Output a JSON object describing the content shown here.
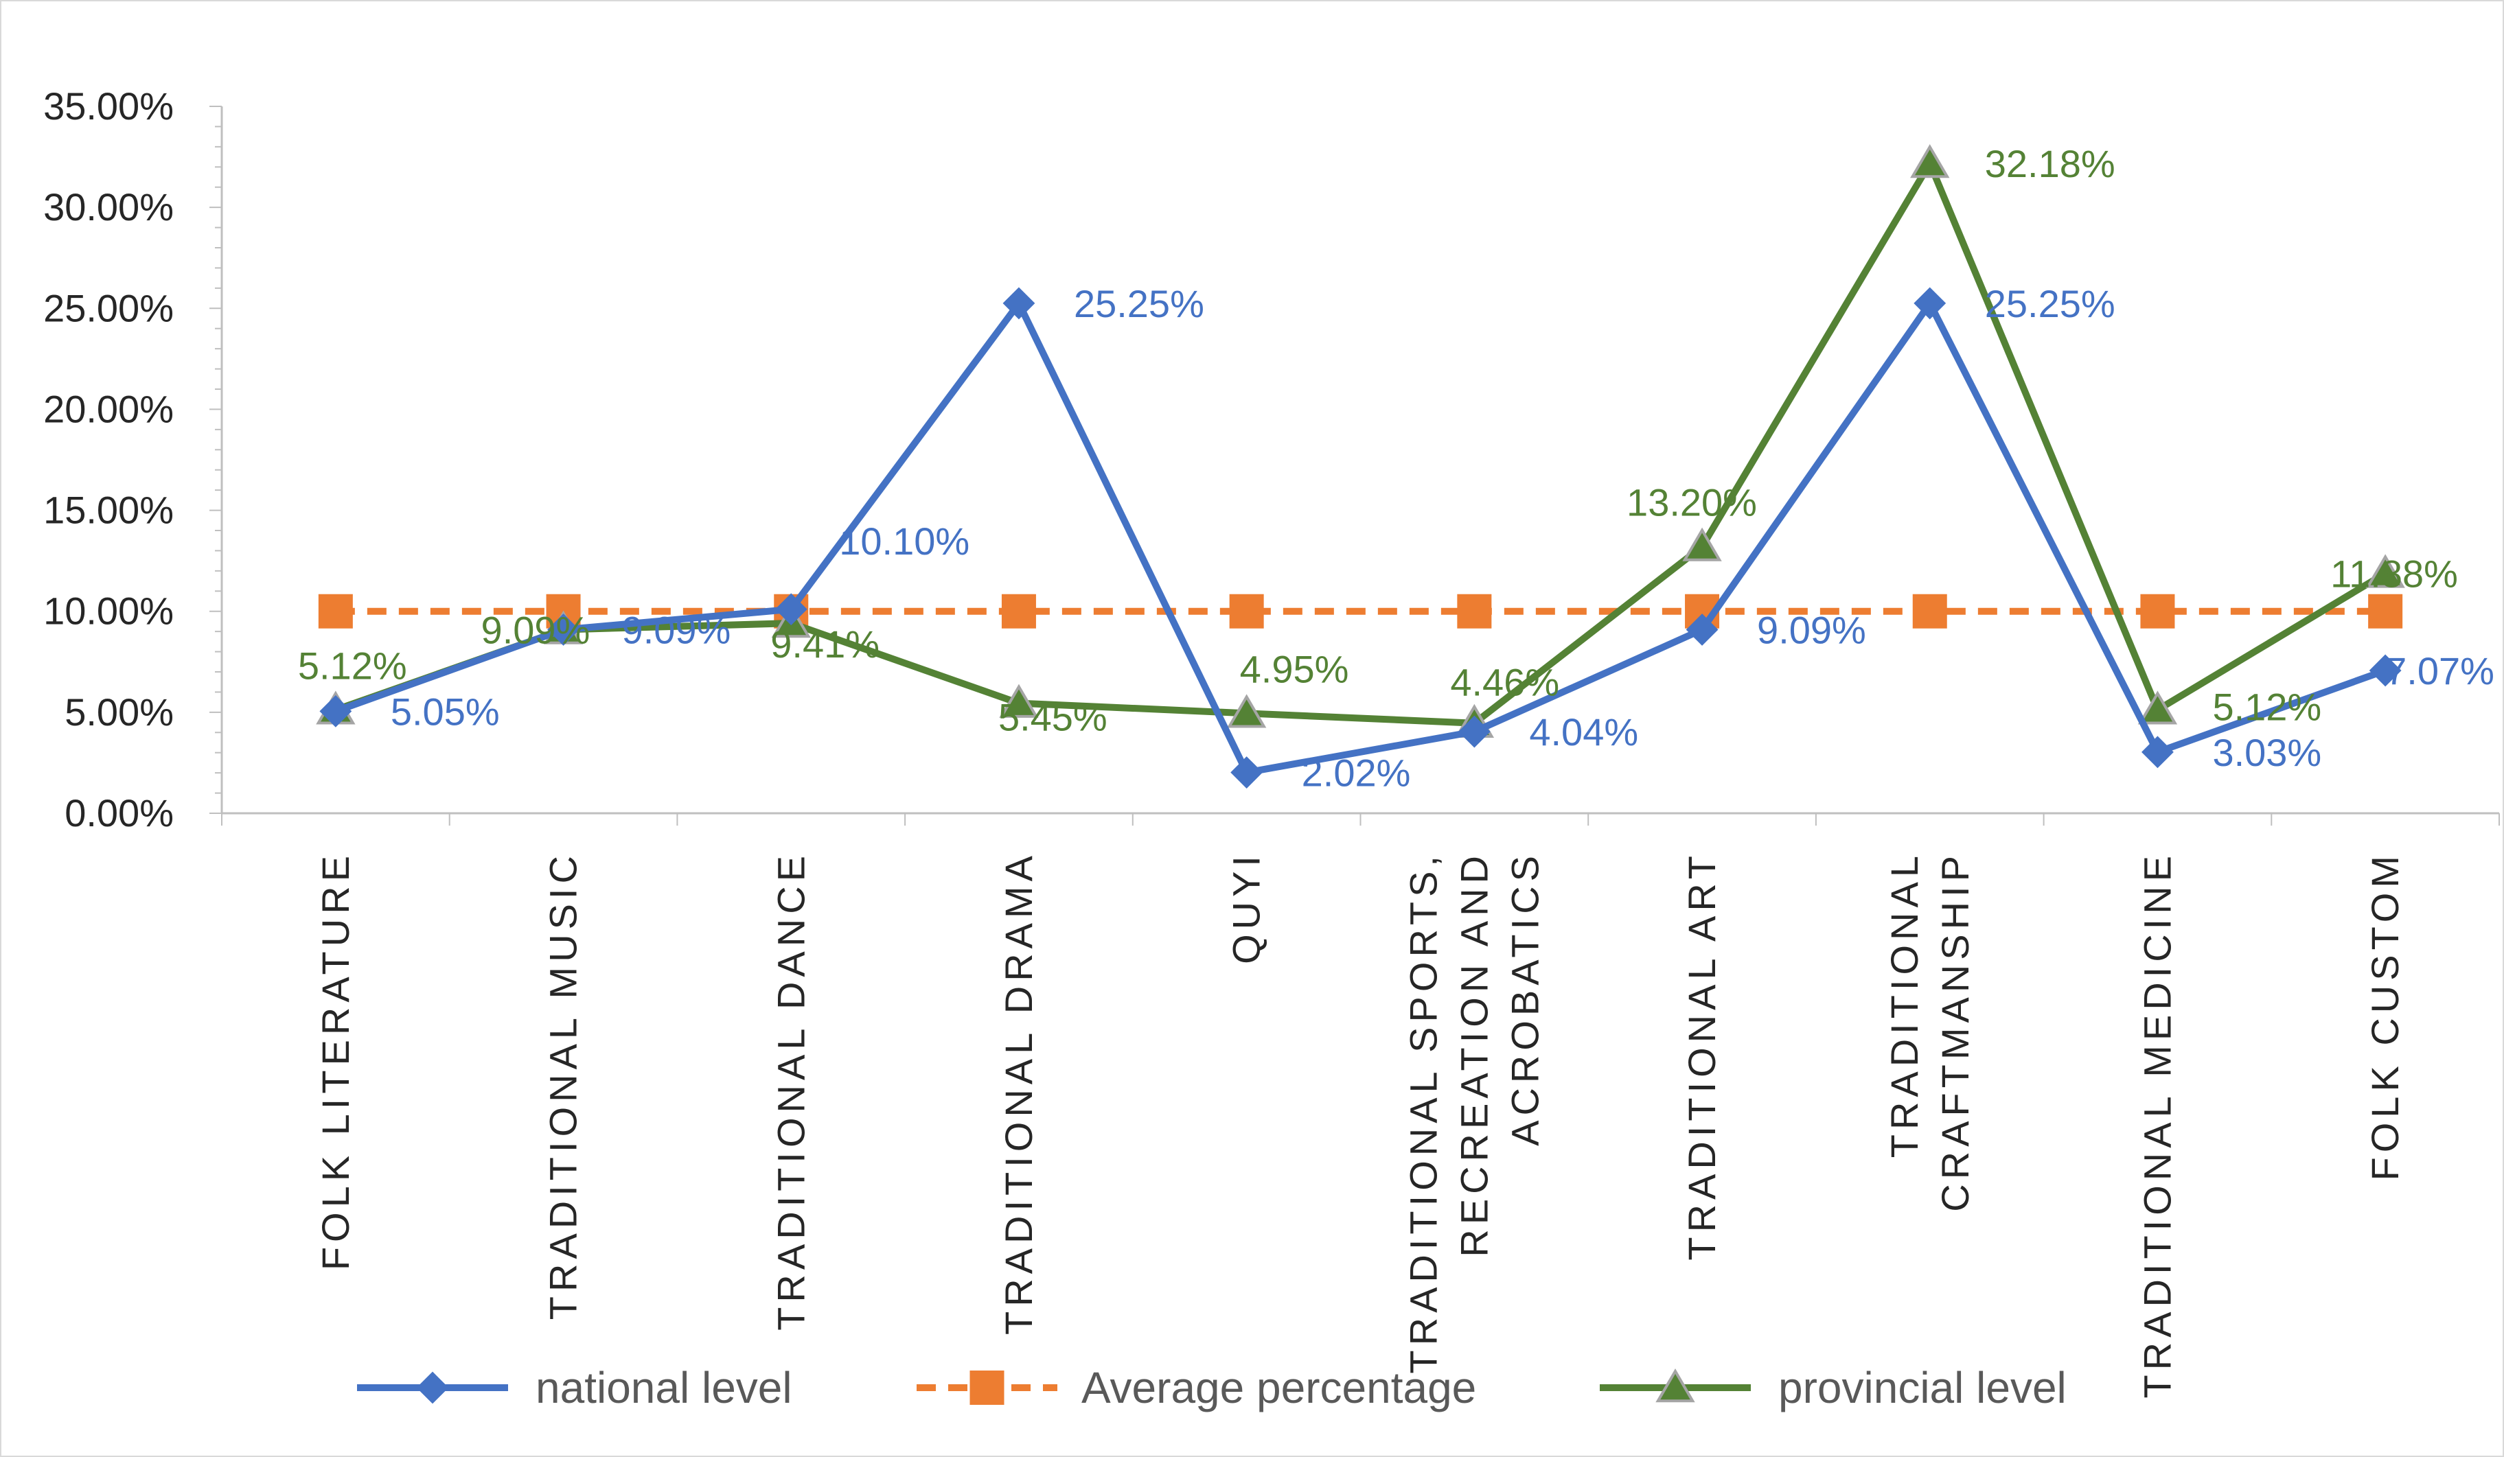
{
  "chart_data": {
    "type": "line",
    "title": "",
    "xlabel": "",
    "ylabel": "",
    "ylim": [
      0,
      35
    ],
    "yticks": [
      "0.00%",
      "5.00%",
      "10.00%",
      "15.00%",
      "20.00%",
      "25.00%",
      "30.00%",
      "35.00%"
    ],
    "categories": [
      [
        "FOLK LITERATURE"
      ],
      [
        "TRADITIONAL MUSIC"
      ],
      [
        "TRADITIONAL DANCE"
      ],
      [
        "TRADITIONAL DRAMA"
      ],
      [
        "QUYI"
      ],
      [
        "TRADITIONAL SPORTS,",
        "RECREATION AND",
        "ACROBATICS"
      ],
      [
        "TRADITIONAL ART"
      ],
      [
        "TRADITIONAL",
        "CRAFTMANSHIP"
      ],
      [
        "TRADITIONAL MEDICINE"
      ],
      [
        "FOLK CUSTOM"
      ]
    ],
    "series": [
      {
        "name": "national level",
        "color": "#4472C4",
        "marker": "diamond",
        "values": [
          5.05,
          9.09,
          10.1,
          25.25,
          2.02,
          4.04,
          9.09,
          25.25,
          3.03,
          7.07
        ],
        "labels": [
          "5.05%",
          "9.09%",
          "10.10%",
          "25.25%",
          "2.02%",
          "4.04%",
          "9.09%",
          "25.25%",
          "3.03%",
          "7.07%"
        ]
      },
      {
        "name": "Average percentage",
        "color": "#ED7D31",
        "marker": "square",
        "dashed": true,
        "values": [
          10,
          10,
          10,
          10,
          10,
          10,
          10,
          10,
          10,
          10
        ],
        "labels": []
      },
      {
        "name": "provincial level",
        "color": "#548235",
        "marker": "triangle",
        "values": [
          5.12,
          9.09,
          9.41,
          5.45,
          4.95,
          4.46,
          13.2,
          32.18,
          5.12,
          11.88
        ],
        "labels": [
          "5.12%",
          "9.09%",
          "9.41%",
          "5.45%",
          "4.95%",
          "4.46%",
          "13.20%",
          "32.18%",
          "5.12%",
          "11.88%"
        ]
      }
    ],
    "legend_position": "bottom"
  }
}
